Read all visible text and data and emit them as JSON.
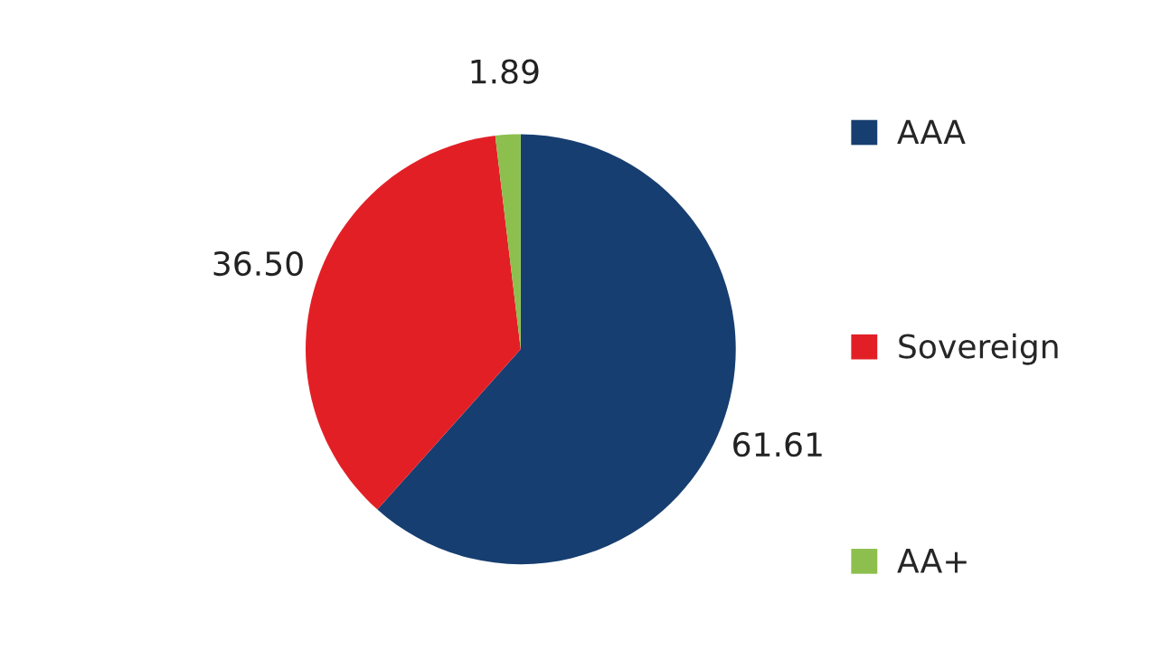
{
  "chart_data": {
    "type": "pie",
    "categories": [
      "AAA",
      "Sovereign",
      "AA+"
    ],
    "values": [
      61.61,
      36.5,
      1.89
    ],
    "value_labels": [
      "61.61",
      "36.50",
      "1.89"
    ],
    "colors": [
      "#173e70",
      "#e31f26",
      "#8dbf4e"
    ],
    "legend": "right"
  }
}
